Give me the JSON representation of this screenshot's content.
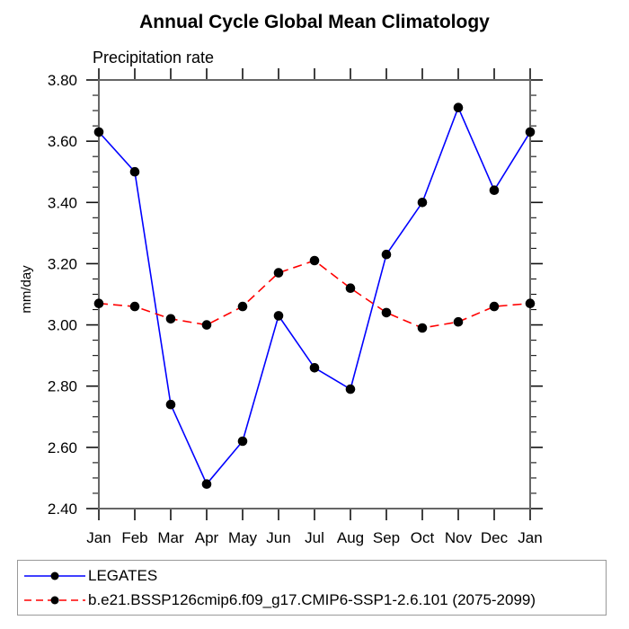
{
  "chart_data": {
    "type": "line",
    "title": "Annual Cycle Global Mean Climatology",
    "subtitle": "Precipitation rate",
    "xlabel": "",
    "ylabel": "mm/day",
    "categories": [
      "Jan",
      "Feb",
      "Mar",
      "Apr",
      "May",
      "Jun",
      "Jul",
      "Aug",
      "Sep",
      "Oct",
      "Nov",
      "Dec",
      "Jan"
    ],
    "ylim": [
      2.4,
      3.8
    ],
    "ytick_major_step": 0.2,
    "ytick_minor_step": 0.05,
    "grid": false,
    "legend_position": "bottom-left-box",
    "marker_color": "#000000",
    "axis_color": "#666666",
    "tick_color": "#111111",
    "series": [
      {
        "name": "LEGATES",
        "color": "#0000ff",
        "style": "solid",
        "marker": "circle",
        "values": [
          3.63,
          3.5,
          2.74,
          2.48,
          2.62,
          3.03,
          2.86,
          2.79,
          3.23,
          3.4,
          3.71,
          3.44,
          3.63
        ]
      },
      {
        "name": "b.e21.BSSP126cmip6.f09_g17.CMIP6-SSP1-2.6.101 (2075-2099)",
        "color": "#ff0000",
        "style": "dashed",
        "marker": "circle",
        "values": [
          3.07,
          3.06,
          3.02,
          3.0,
          3.06,
          3.17,
          3.21,
          3.12,
          3.04,
          2.99,
          3.01,
          3.06,
          3.07
        ]
      }
    ]
  }
}
